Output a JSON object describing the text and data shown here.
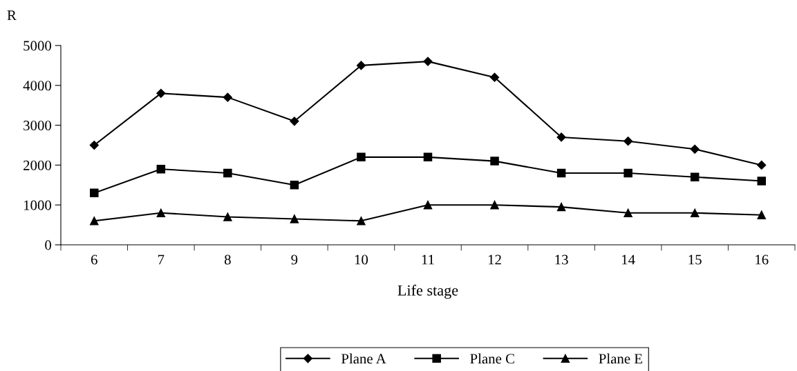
{
  "chart_data": {
    "type": "line",
    "ylabel": "R",
    "xlabel": "Life stage",
    "categories": [
      "6",
      "7",
      "8",
      "9",
      "10",
      "11",
      "12",
      "13",
      "14",
      "15",
      "16"
    ],
    "series": [
      {
        "name": "Plane A",
        "color": "#000000",
        "marker": "diamond",
        "values": [
          2500,
          3800,
          3700,
          3100,
          4500,
          4600,
          4200,
          2700,
          2600,
          2400,
          2000
        ]
      },
      {
        "name": "Plane C",
        "color": "#000000",
        "marker": "square",
        "values": [
          1300,
          1900,
          1800,
          1500,
          2200,
          2200,
          2100,
          1800,
          1800,
          1700,
          1600
        ]
      },
      {
        "name": "Plane E",
        "color": "#000000",
        "marker": "triangle",
        "values": [
          600,
          800,
          700,
          650,
          600,
          1000,
          1000,
          950,
          800,
          800,
          750
        ]
      }
    ],
    "ylim": [
      0,
      5000
    ],
    "yticks": [
      0,
      1000,
      2000,
      3000,
      4000,
      5000
    ],
    "grid": false,
    "legend": "bottom",
    "line_style": "solid"
  }
}
